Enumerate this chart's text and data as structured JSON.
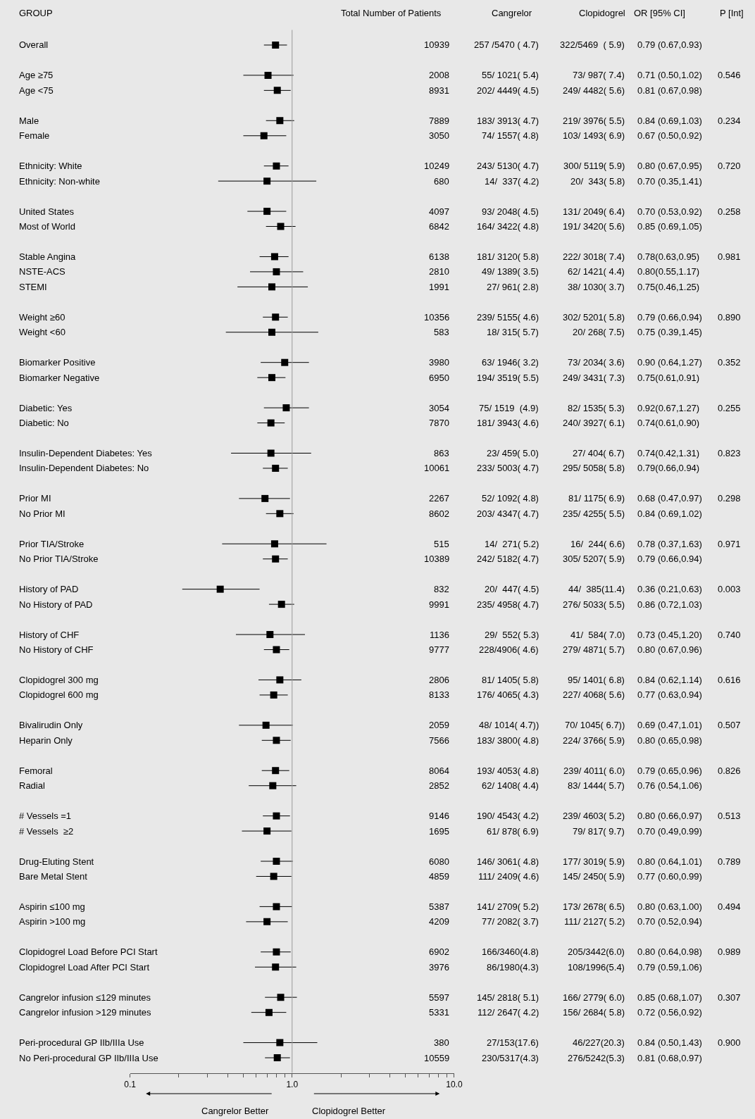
{
  "chart_data": {
    "type": "scatter",
    "orientation": "horizontal",
    "marker": "square",
    "log": "x",
    "ylabel": "GROUP",
    "categories": [
      "Overall",
      null,
      "Age ≥75",
      "Age <75",
      null,
      "Male",
      "Female",
      null,
      "Ethnicity: White",
      "Ethnicity: Non-white",
      null,
      "United States",
      "Most of World",
      null,
      "Stable Angina",
      "NSTE-ACS",
      "STEMI",
      null,
      "Weight ≥60",
      "Weight <60",
      null,
      "Biomarker Positive",
      "Biomarker Negative",
      null,
      "Diabetic: Yes",
      "Diabetic: No",
      null,
      "Insulin-Dependent Diabetes: Yes",
      "Insulin-Dependent Diabetes: No",
      null,
      "Prior MI",
      "No Prior MI",
      null,
      "Prior TIA/Stroke",
      "No Prior TIA/Stroke",
      null,
      "History of PAD",
      "No History of PAD",
      null,
      "History of CHF",
      "No History of CHF",
      null,
      "Clopidogrel 300 mg",
      "Clopidogrel 600 mg",
      null,
      "Bivalirudin Only",
      "Heparin Only",
      null,
      "Femoral",
      "Radial",
      null,
      "# Vessels =1",
      "# Vessels  ≥2",
      null,
      "Drug-Eluting Stent",
      "Bare Metal Stent",
      null,
      "Aspirin ≤100 mg",
      "Aspirin >100 mg",
      null,
      "Clopidogrel Load Before PCI Start",
      "Clopidogrel Load After PCI Start",
      null,
      "Cangrelor infusion ≤129 minutes",
      "Cangrelor infusion >129 minutes",
      null,
      "Peri-procedural GP IIb/IIIa Use",
      "No Peri-procedural GP IIb/IIIa Use"
    ],
    "values": [
      0.79,
      null,
      0.71,
      0.81,
      null,
      0.84,
      0.67,
      null,
      0.8,
      0.7,
      null,
      0.7,
      0.85,
      null,
      0.78,
      0.8,
      0.75,
      null,
      0.79,
      0.75,
      null,
      0.9,
      0.75,
      null,
      0.92,
      0.74,
      null,
      0.74,
      0.79,
      null,
      0.68,
      0.84,
      null,
      0.78,
      0.79,
      null,
      0.36,
      0.86,
      null,
      0.73,
      0.8,
      null,
      0.84,
      0.77,
      null,
      0.69,
      0.8,
      null,
      0.79,
      0.76,
      null,
      0.8,
      0.7,
      null,
      0.8,
      0.77,
      null,
      0.8,
      0.7,
      null,
      0.8,
      0.79,
      null,
      0.85,
      0.72,
      null,
      0.84,
      0.81
    ],
    "errors": [
      [
        0.67,
        0.93
      ],
      null,
      [
        0.5,
        1.02
      ],
      [
        0.67,
        0.98
      ],
      null,
      [
        0.69,
        1.03
      ],
      [
        0.5,
        0.92
      ],
      null,
      [
        0.67,
        0.95
      ],
      [
        0.35,
        1.41
      ],
      null,
      [
        0.53,
        0.92
      ],
      [
        0.69,
        1.05
      ],
      null,
      [
        0.63,
        0.95
      ],
      [
        0.55,
        1.17
      ],
      [
        0.46,
        1.25
      ],
      null,
      [
        0.66,
        0.94
      ],
      [
        0.39,
        1.45
      ],
      null,
      [
        0.64,
        1.27
      ],
      [
        0.61,
        0.91
      ],
      null,
      [
        0.67,
        1.27
      ],
      [
        0.61,
        0.9
      ],
      null,
      [
        0.42,
        1.31
      ],
      [
        0.66,
        0.94
      ],
      null,
      [
        0.47,
        0.97
      ],
      [
        0.69,
        1.02
      ],
      null,
      [
        0.37,
        1.63
      ],
      [
        0.66,
        0.94
      ],
      null,
      [
        0.21,
        0.63
      ],
      [
        0.72,
        1.03
      ],
      null,
      [
        0.45,
        1.2
      ],
      [
        0.67,
        0.96
      ],
      null,
      [
        0.62,
        1.14
      ],
      [
        0.63,
        0.94
      ],
      null,
      [
        0.47,
        1.01
      ],
      [
        0.65,
        0.98
      ],
      null,
      [
        0.65,
        0.96
      ],
      [
        0.54,
        1.06
      ],
      null,
      [
        0.66,
        0.97
      ],
      [
        0.49,
        0.99
      ],
      null,
      [
        0.64,
        1.01
      ],
      [
        0.6,
        0.99
      ],
      null,
      [
        0.63,
        1.0
      ],
      [
        0.52,
        0.94
      ],
      null,
      [
        0.64,
        0.98
      ],
      [
        0.59,
        1.06
      ],
      null,
      [
        0.68,
        1.07
      ],
      [
        0.56,
        0.92
      ],
      null,
      [
        0.5,
        1.43
      ],
      [
        0.68,
        0.97
      ]
    ],
    "value_labels": [
      "0.79 (0.67,0.93)",
      null,
      "0.71 (0.50,1.02)",
      "0.81 (0.67,0.98)",
      null,
      "0.84 (0.69,1.03)",
      "0.67 (0.50,0.92)",
      null,
      "0.80 (0.67,0.95)",
      "0.70 (0.35,1.41)",
      null,
      "0.70 (0.53,0.92)",
      "0.85 (0.69,1.05)",
      null,
      "0.78(0.63,0.95)",
      "0.80(0.55,1.17)",
      "0.75(0.46,1.25)",
      null,
      "0.79 (0.66,0.94)",
      "0.75 (0.39,1.45)",
      null,
      "0.90 (0.64,1.27)",
      "0.75(0.61,0.91)",
      null,
      "0.92(0.67,1.27)",
      "0.74(0.61,0.90)",
      null,
      "0.74(0.42,1.31)",
      "0.79(0.66,0.94)",
      null,
      "0.68 (0.47,0.97)",
      "0.84 (0.69,1.02)",
      null,
      "0.78 (0.37,1.63)",
      "0.79 (0.66,0.94)",
      null,
      "0.36 (0.21,0.63)",
      "0.86 (0.72,1.03)",
      null,
      "0.73 (0.45,1.20)",
      "0.80 (0.67,0.96)",
      null,
      "0.84 (0.62,1.14)",
      "0.77 (0.63,0.94)",
      null,
      "0.69 (0.47,1.01)",
      "0.80 (0.65,0.98)",
      null,
      "0.79 (0.65,0.96)",
      "0.76 (0.54,1.06)",
      null,
      "0.80 (0.66,0.97)",
      "0.70 (0.49,0.99)",
      null,
      "0.80 (0.64,1.01)",
      "0.77 (0.60,0.99)",
      null,
      "0.80 (0.63,1.00)",
      "0.70 (0.52,0.94)",
      null,
      "0.80 (0.64,0.98)",
      "0.79 (0.59,1.06)",
      null,
      "0.85 (0.68,1.07)",
      "0.72 (0.56,0.92)",
      null,
      "0.84 (0.50,1.43)",
      "0.81 (0.68,0.97)"
    ],
    "color": "#000000",
    "xlim": [
      0.1,
      10
    ],
    "xticks": [
      {
        "value": 0.1,
        "label": "0.1"
      },
      {
        "value": 0.2,
        "label": null
      },
      {
        "value": 0.3,
        "label": null
      },
      {
        "value": 0.4,
        "label": null
      },
      {
        "value": 0.5,
        "label": null
      },
      {
        "value": 0.6,
        "label": null
      },
      {
        "value": 0.7,
        "label": null
      },
      {
        "value": 0.8,
        "label": null
      },
      {
        "value": 0.9,
        "label": null
      },
      {
        "value": 1,
        "label": "1.0"
      },
      {
        "value": 2,
        "label": null
      },
      {
        "value": 3,
        "label": null
      },
      {
        "value": 4,
        "label": null
      },
      {
        "value": 5,
        "label": null
      },
      {
        "value": 6,
        "label": null
      },
      {
        "value": 7,
        "label": null
      },
      {
        "value": 8,
        "label": null
      },
      {
        "value": 9,
        "label": null
      },
      {
        "value": 10,
        "label": "10.0"
      }
    ],
    "ref_lines": [
      {
        "axis": "x",
        "value": 1,
        "color": "#999999"
      }
    ],
    "annotations": [
      "Total Number of Patients",
      "Cangrelor",
      "Clopidogrel",
      "OR [95% CI]",
      "P [Int]",
      "Cangrelor Better",
      "Clopidogrel Better",
      "10939",
      "257 /5470 ( 4.7)",
      "322/5469  ( 5.9)",
      "2008",
      "55/ 1021( 5.4)",
      "73/ 987( 7.4)",
      "0.546",
      "8931",
      "202/ 4449( 4.5)",
      "249/ 4482( 5.6)",
      "7889",
      "183/ 3913( 4.7)",
      "219/ 3976( 5.5)",
      "0.234",
      "3050",
      "74/ 1557( 4.8)",
      "103/ 1493( 6.9)",
      "10249",
      "243/ 5130( 4.7)",
      "300/ 5119( 5.9)",
      "0.720",
      "680",
      "14/  337( 4.2)",
      "20/  343( 5.8)",
      "4097",
      "93/ 2048( 4.5)",
      "131/ 2049( 6.4)",
      "0.258",
      "6842",
      "164/ 3422( 4.8)",
      "191/ 3420( 5.6)",
      "6138",
      "181/ 3120( 5.8)",
      "222/ 3018( 7.4)",
      "0.981",
      "2810",
      "49/ 1389( 3.5)",
      "62/ 1421( 4.4)",
      "1991",
      "27/ 961( 2.8)",
      "38/ 1030( 3.7)",
      "10356",
      "239/ 5155( 4.6)",
      "302/ 5201( 5.8)",
      "0.890",
      "583",
      "18/ 315( 5.7)",
      "20/ 268( 7.5)",
      "3980",
      "63/ 1946( 3.2)",
      "73/ 2034( 3.6)",
      "0.352",
      "6950",
      "194/ 3519( 5.5)",
      "249/ 3431( 7.3)",
      "3054",
      "75/ 1519  (4.9)",
      "82/ 1535( 5.3)",
      "0.255",
      "7870",
      "181/ 3943( 4.6)",
      "240/ 3927( 6.1)",
      "863",
      "23/ 459( 5.0)",
      "27/ 404( 6.7)",
      "0.823",
      "10061",
      "233/ 5003( 4.7)",
      "295/ 5058( 5.8)",
      "2267",
      "52/ 1092( 4.8)",
      "81/ 1175( 6.9)",
      "0.298",
      "8602",
      "203/ 4347( 4.7)",
      "235/ 4255( 5.5)",
      "515",
      "14/  271( 5.2)",
      "16/  244( 6.6)",
      "0.971",
      "10389",
      "242/ 5182( 4.7)",
      "305/ 5207( 5.9)",
      "832",
      "20/  447( 4.5)",
      "44/  385(11.4)",
      "0.003",
      "9991",
      "235/ 4958( 4.7)",
      "276/ 5033( 5.5)",
      "1136",
      "29/  552( 5.3)",
      "41/  584( 7.0)",
      "0.740",
      "9777",
      "228/4906( 4.6)",
      "279/ 4871( 5.7)",
      "2806",
      "81/ 1405( 5.8)",
      "95/ 1401( 6.8)",
      "0.616",
      "8133",
      "176/ 4065( 4.3)",
      "227/ 4068( 5.6)",
      "2059",
      "48/ 1014( 4.7))",
      "70/ 1045( 6.7))",
      "0.507",
      "7566",
      "183/ 3800( 4.8)",
      "224/ 3766( 5.9)",
      "8064",
      "193/ 4053( 4.8)",
      "239/ 4011( 6.0)",
      "0.826",
      "2852",
      "62/ 1408( 4.4)",
      "83/ 1444( 5.7)",
      "9146",
      "190/ 4543( 4.2)",
      "239/ 4603( 5.2)",
      "0.513",
      "1695",
      "61/ 878( 6.9)",
      "79/ 817( 9.7)",
      "6080",
      "146/ 3061( 4.8)",
      "177/ 3019( 5.9)",
      "0.789",
      "4859",
      "111/ 2409( 4.6)",
      "145/ 2450( 5.9)",
      "5387",
      "141/ 2709( 5.2)",
      "173/ 2678( 6.5)",
      "0.494",
      "4209",
      "77/ 2082( 3.7)",
      "111/ 2127( 5.2)",
      "6902",
      "166/3460(4.8)",
      "205/3442(6.0)",
      "0.989",
      "3976",
      "86/1980(4.3)",
      "108/1996(5.4)",
      "5597",
      "145/ 2818( 5.1)",
      "166/ 2779( 6.0)",
      "0.307",
      "5331",
      "112/ 2647( 4.2)",
      "156/ 2684( 5.8)",
      "380",
      "27/153(17.6)",
      "46/227(20.3)",
      "0.900",
      "10559",
      "230/5317(4.3)",
      "276/5242(5.3)"
    ]
  }
}
